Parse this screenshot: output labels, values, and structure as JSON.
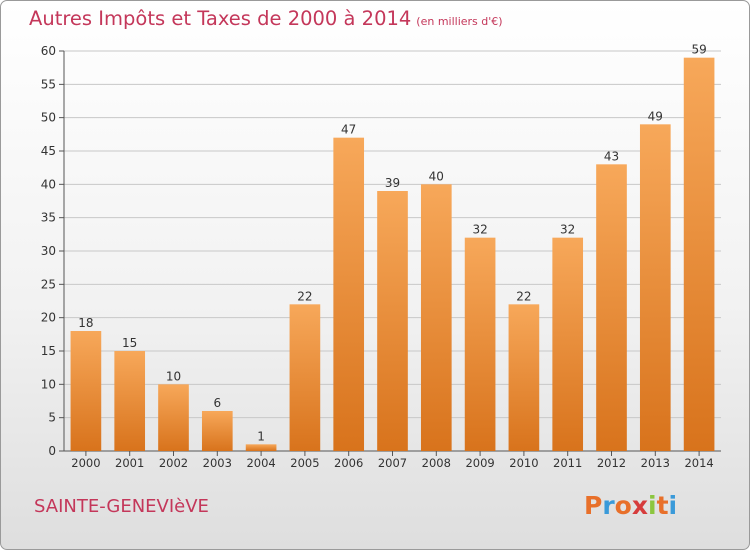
{
  "header": {
    "title": "Autres Impôts et Taxes de 2000 à 2014",
    "unit": "(en milliers d'€)"
  },
  "footer": {
    "commune": "SAINTE-GENEVIèVE",
    "brand": "Proxiti",
    "brand_colors": [
      "#e8702a",
      "#3a9ad9",
      "#e8702a",
      "#d63c3c",
      "#8cc63f",
      "#e8702a",
      "#3a9ad9"
    ]
  },
  "colors": {
    "title": "#c4375a",
    "bar_light": "#f7a85a",
    "bar_dark": "#d8731c",
    "grid": "#c8c8c8",
    "axis": "#555555"
  },
  "chart_data": {
    "type": "bar",
    "categories": [
      "2000",
      "2001",
      "2002",
      "2003",
      "2004",
      "2005",
      "2006",
      "2007",
      "2008",
      "2009",
      "2010",
      "2011",
      "2012",
      "2013",
      "2014"
    ],
    "values": [
      18,
      15,
      10,
      6,
      1,
      22,
      47,
      39,
      40,
      32,
      22,
      32,
      43,
      49,
      59
    ],
    "title": "Autres Impôts et Taxes de 2000 à 2014",
    "xlabel": "",
    "ylabel": "",
    "ylim": [
      0,
      60
    ],
    "yticks": [
      0,
      5,
      10,
      15,
      20,
      25,
      30,
      35,
      40,
      45,
      50,
      55,
      60
    ],
    "grid": true,
    "data_labels": true
  }
}
